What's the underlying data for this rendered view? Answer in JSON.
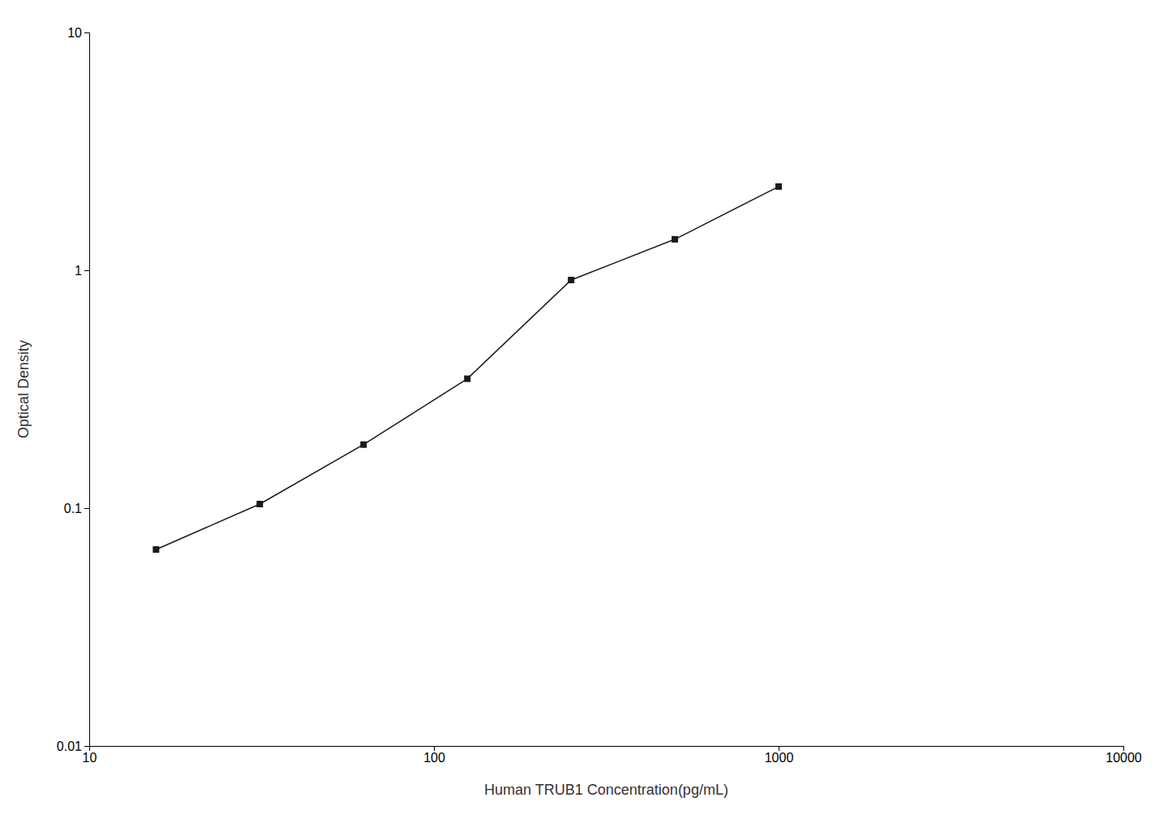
{
  "chart_data": {
    "type": "line",
    "x": [
      15.625,
      31.25,
      62.5,
      125,
      250,
      500,
      1000
    ],
    "values": [
      0.067,
      0.104,
      0.185,
      0.35,
      0.91,
      1.35,
      2.25
    ],
    "xlabel": "Human TRUB1 Concentration(pg/mL)",
    "ylabel": "Optical Density",
    "log": true,
    "xlim": [
      10,
      10000
    ],
    "ylim": [
      0.01,
      10
    ],
    "xticks": [
      10,
      100,
      1000,
      10000
    ],
    "yticks": [
      0.01,
      0.1,
      1,
      10
    ],
    "grid": false,
    "color": "#1a1a1a",
    "marker": "square"
  }
}
